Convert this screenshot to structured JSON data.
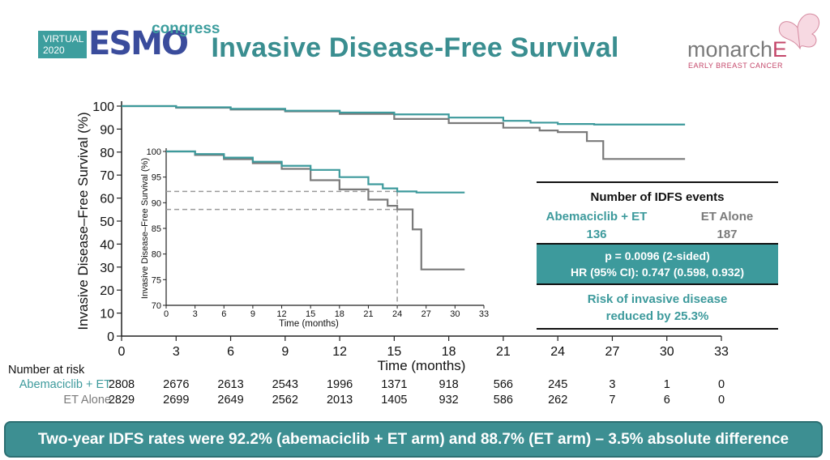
{
  "header": {
    "title": "Invasive Disease-Free Survival",
    "logo_left": {
      "virtual_line1": "VIRTUAL",
      "virtual_line2": "2020",
      "esmo": "ESMO",
      "congress": "congress"
    },
    "logo_right": {
      "brand": "monarch",
      "brand_suffix": "E",
      "subtitle": "EARLY BREAST CANCER"
    }
  },
  "colors": {
    "abema": "#3d9a9c",
    "et": "#7a7a7a",
    "title": "#3a8e90",
    "banner": "#3d8f92"
  },
  "chart_data": [
    {
      "type": "line",
      "title": "",
      "xlabel": "Time (months)",
      "ylabel": "Invasive Disease–Free Survival (%)",
      "xlim": [
        0,
        33
      ],
      "ylim": [
        0,
        100
      ],
      "xticks": [
        0,
        3,
        6,
        9,
        12,
        15,
        18,
        21,
        24,
        27,
        30,
        33
      ],
      "yticks": [
        0,
        10,
        20,
        30,
        40,
        50,
        60,
        70,
        80,
        90,
        100
      ],
      "series": [
        {
          "name": "Abemaciclib + ET",
          "color": "#3d9a9c",
          "points": [
            [
              0,
              100
            ],
            [
              3,
              99.5
            ],
            [
              6,
              98.8
            ],
            [
              9,
              98
            ],
            [
              12,
              97.2
            ],
            [
              15,
              96.4
            ],
            [
              18,
              95
            ],
            [
              21,
              93.6
            ],
            [
              22.5,
              92.8
            ],
            [
              24,
              92.2
            ],
            [
              26,
              92
            ],
            [
              31,
              92
            ]
          ]
        },
        {
          "name": "ET Alone",
          "color": "#7a7a7a",
          "points": [
            [
              0,
              100
            ],
            [
              3,
              99.3
            ],
            [
              6,
              98.5
            ],
            [
              9,
              97.7
            ],
            [
              12,
              96.6
            ],
            [
              15,
              94.4
            ],
            [
              18,
              92.6
            ],
            [
              21,
              90.6
            ],
            [
              23,
              89.4
            ],
            [
              24,
              88.7
            ],
            [
              25.5,
              88.7
            ],
            [
              25.6,
              84.8
            ],
            [
              26.4,
              84.8
            ],
            [
              26.5,
              77
            ],
            [
              31,
              77
            ]
          ]
        }
      ]
    },
    {
      "type": "line",
      "title": "",
      "xlabel": "Time (months)",
      "ylabel": "Invasive Disease–Free Survival (%)",
      "xlim": [
        0,
        33
      ],
      "ylim": [
        70,
        100
      ],
      "xticks": [
        0,
        3,
        6,
        9,
        12,
        15,
        18,
        21,
        24,
        27,
        30,
        33
      ],
      "yticks": [
        70,
        75,
        80,
        85,
        90,
        95,
        100
      ],
      "reference_lines": {
        "x": 24,
        "y": [
          92.2,
          88.7
        ]
      },
      "series": [
        {
          "name": "Abemaciclib + ET",
          "color": "#3d9a9c",
          "points": [
            [
              0,
              100
            ],
            [
              3,
              99.5
            ],
            [
              6,
              98.8
            ],
            [
              9,
              98
            ],
            [
              12,
              97.2
            ],
            [
              15,
              96.4
            ],
            [
              18,
              95
            ],
            [
              21,
              93.6
            ],
            [
              22.5,
              92.8
            ],
            [
              24,
              92.2
            ],
            [
              26,
              92
            ],
            [
              31,
              92
            ]
          ]
        },
        {
          "name": "ET Alone",
          "color": "#7a7a7a",
          "points": [
            [
              0,
              100
            ],
            [
              3,
              99.3
            ],
            [
              6,
              98.5
            ],
            [
              9,
              97.7
            ],
            [
              12,
              96.6
            ],
            [
              15,
              94.4
            ],
            [
              18,
              92.6
            ],
            [
              21,
              90.6
            ],
            [
              23,
              89.4
            ],
            [
              24,
              88.7
            ],
            [
              25.5,
              88.7
            ],
            [
              25.6,
              84.8
            ],
            [
              26.4,
              84.8
            ],
            [
              26.5,
              77
            ],
            [
              31,
              77
            ]
          ]
        }
      ]
    }
  ],
  "events_box": {
    "heading": "Number of IDFS events",
    "arm1_label": "Abemaciclib + ET",
    "arm1_count": "136",
    "arm2_label": "ET Alone",
    "arm2_count": "187",
    "p_value": "p = 0.0096 (2-sided)",
    "hr": "HR (95% CI): 0.747 (0.598, 0.932)",
    "risk_line1": "Risk of invasive disease",
    "risk_line2": "reduced by 25.3%"
  },
  "risk_table": {
    "heading": "Number at risk",
    "rows": [
      {
        "label": "Abemaciclib + ET",
        "values": [
          "2808",
          "2676",
          "2613",
          "2543",
          "1996",
          "1371",
          "918",
          "566",
          "245",
          "3",
          "1",
          "0"
        ]
      },
      {
        "label": "ET Alone",
        "values": [
          "2829",
          "2699",
          "2649",
          "2562",
          "2013",
          "1405",
          "932",
          "586",
          "262",
          "7",
          "6",
          "0"
        ]
      }
    ]
  },
  "banner": {
    "text": "Two-year IDFS rates were 92.2% (abemaciclib + ET arm) and 88.7% (ET arm) – 3.5% absolute difference"
  }
}
